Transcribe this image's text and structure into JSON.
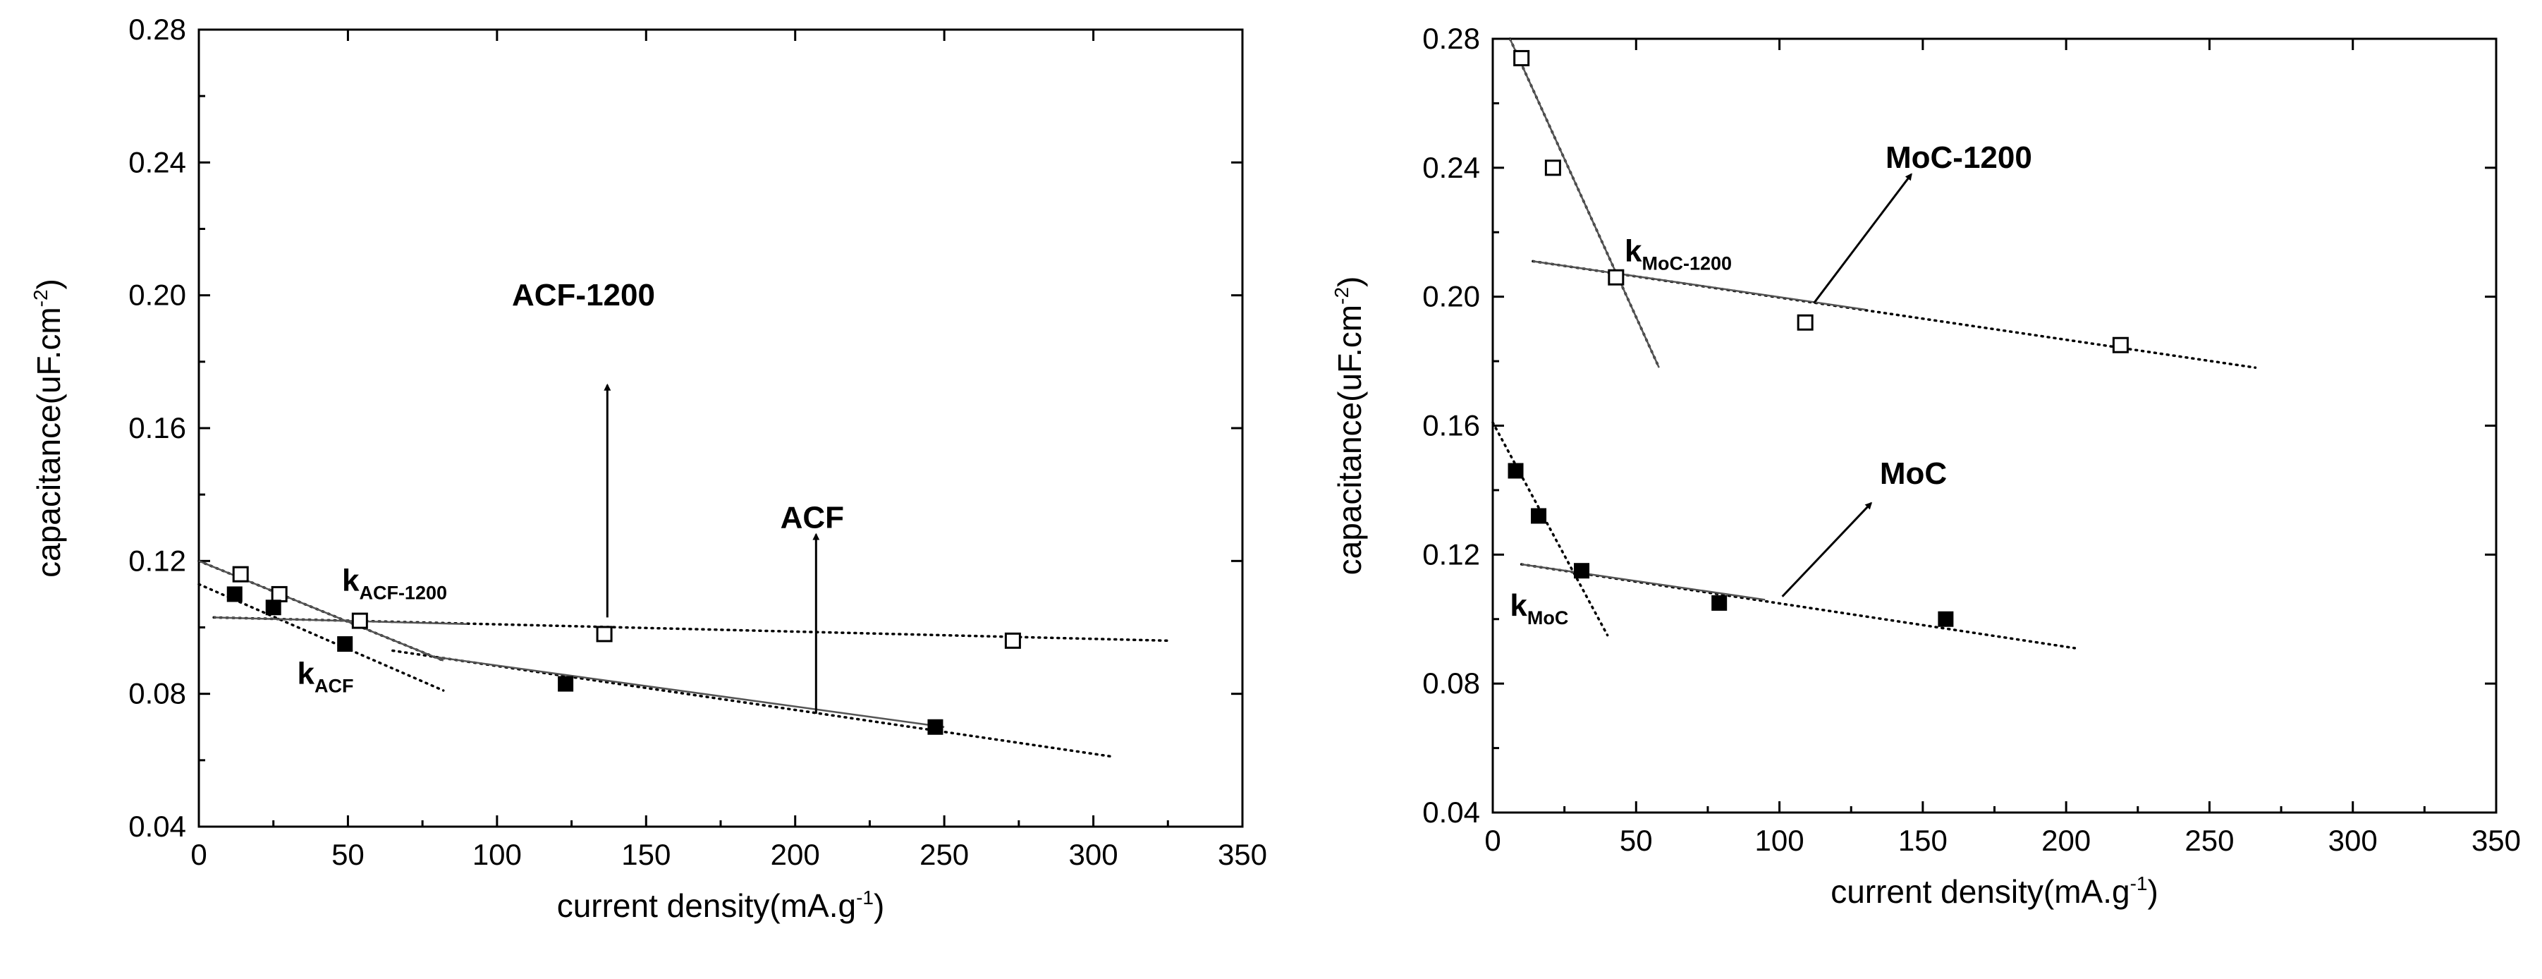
{
  "chart_data": [
    {
      "type": "scatter",
      "xlabel": "current density(mA.g",
      "xlabel_sup": "-1",
      "xlabel_close": ")",
      "ylabel": "capacitance(uF.cm",
      "ylabel_sup": "-2",
      "ylabel_close": ")",
      "xlim": [
        0,
        350
      ],
      "ylim": [
        0.04,
        0.28
      ],
      "xticks": [
        "0",
        "50",
        "100",
        "150",
        "200",
        "250",
        "300",
        "350"
      ],
      "yticks": [
        "0.04",
        "0.08",
        "0.12",
        "0.16",
        "0.20",
        "0.24",
        "0.28"
      ],
      "series": [
        {
          "name": "ACF-1200",
          "marker": "open-square",
          "x": [
            14,
            27,
            54,
            136,
            273
          ],
          "y": [
            0.116,
            0.11,
            0.102,
            0.098,
            0.096
          ]
        },
        {
          "name": "ACF",
          "marker": "filled-square",
          "x": [
            12,
            25,
            49,
            123,
            247
          ],
          "y": [
            0.11,
            0.106,
            0.095,
            0.083,
            0.07
          ]
        }
      ],
      "fit_lines": [
        {
          "style": "dotted",
          "x": [
            0,
            82
          ],
          "y": [
            0.12,
            0.09
          ]
        },
        {
          "style": "dotted",
          "x": [
            5,
            325
          ],
          "y": [
            0.103,
            0.096
          ]
        },
        {
          "style": "dotted",
          "x": [
            0,
            82
          ],
          "y": [
            0.113,
            0.081
          ]
        },
        {
          "style": "dotted",
          "x": [
            65,
            307
          ],
          "y": [
            0.093,
            0.061
          ]
        },
        {
          "style": "solid",
          "x": [
            0,
            82
          ],
          "y": [
            0.12,
            0.09
          ]
        },
        {
          "style": "solid",
          "x": [
            5,
            90
          ],
          "y": [
            0.103,
            0.101
          ]
        },
        {
          "style": "solid",
          "x": [
            80,
            250
          ],
          "y": [
            0.091,
            0.07
          ]
        }
      ],
      "labels": [
        {
          "text": "ACF-1200",
          "x": 105,
          "y": 0.197
        },
        {
          "text": "ACF",
          "x": 195,
          "y": 0.13
        }
      ],
      "k_labels": [
        {
          "main": "k",
          "sub": "ACF-1200",
          "x": 48,
          "y": 0.111
        },
        {
          "main": "k",
          "sub": "ACF",
          "x": 33,
          "y": 0.083
        }
      ],
      "arrows": [
        {
          "from": [
            137,
            0.103
          ],
          "to": [
            137,
            0.173
          ]
        },
        {
          "from": [
            207,
            0.074
          ],
          "to": [
            207,
            0.128
          ]
        }
      ]
    },
    {
      "type": "scatter",
      "xlabel": "current density(mA.g",
      "xlabel_sup": "-1",
      "xlabel_close": ")",
      "ylabel": "capacitance(uF.cm",
      "ylabel_sup": "-2",
      "ylabel_close": ")",
      "xlim": [
        0,
        350
      ],
      "ylim": [
        0.04,
        0.28
      ],
      "xticks": [
        "0",
        "50",
        "100",
        "150",
        "200",
        "250",
        "300",
        "350"
      ],
      "yticks": [
        "0.04",
        "0.08",
        "0.12",
        "0.16",
        "0.20",
        "0.24",
        "0.28"
      ],
      "series": [
        {
          "name": "MoC-1200",
          "marker": "open-square",
          "x": [
            10,
            21,
            43,
            109,
            219
          ],
          "y": [
            0.274,
            0.24,
            0.206,
            0.192,
            0.185
          ]
        },
        {
          "name": "MoC",
          "marker": "filled-square",
          "x": [
            8,
            16,
            31,
            79,
            158
          ],
          "y": [
            0.146,
            0.132,
            0.115,
            0.105,
            0.1
          ]
        }
      ],
      "fit_lines": [
        {
          "style": "dotted",
          "x": [
            6,
            58
          ],
          "y": [
            0.28,
            0.178
          ]
        },
        {
          "style": "dotted",
          "x": [
            14,
            266
          ],
          "y": [
            0.211,
            0.178
          ]
        },
        {
          "style": "dotted",
          "x": [
            0,
            40
          ],
          "y": [
            0.161,
            0.095
          ]
        },
        {
          "style": "dotted",
          "x": [
            10,
            203
          ],
          "y": [
            0.117,
            0.091
          ]
        },
        {
          "style": "solid",
          "x": [
            6,
            58
          ],
          "y": [
            0.28,
            0.178
          ]
        },
        {
          "style": "solid",
          "x": [
            14,
            130
          ],
          "y": [
            0.211,
            0.196
          ]
        },
        {
          "style": "solid",
          "x": [
            10,
            95
          ],
          "y": [
            0.117,
            0.106
          ]
        }
      ],
      "labels": [
        {
          "text": "MoC-1200",
          "x": 137,
          "y": 0.24
        },
        {
          "text": "MoC",
          "x": 135,
          "y": 0.142
        }
      ],
      "k_labels": [
        {
          "main": "k",
          "sub": "MoC-1200",
          "x": 46,
          "y": 0.211
        },
        {
          "main": "k",
          "sub": "MoC",
          "x": 6,
          "y": 0.101
        }
      ],
      "arrows": [
        {
          "from": [
            112,
            0.198
          ],
          "to": [
            146,
            0.238
          ]
        },
        {
          "from": [
            101,
            0.107
          ],
          "to": [
            132,
            0.136
          ]
        }
      ]
    }
  ]
}
